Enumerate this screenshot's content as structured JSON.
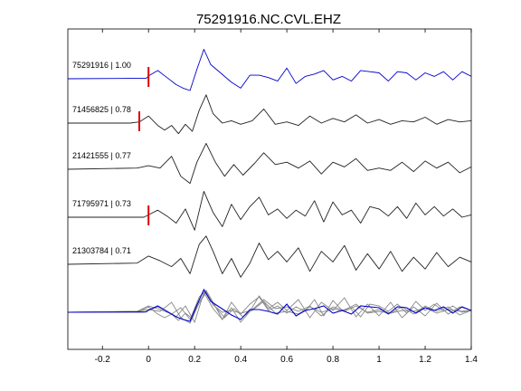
{
  "chart_data": {
    "type": "line",
    "title": "75291916.NC.CVL.EHZ",
    "xlabel": "",
    "ylabel": "",
    "xlim": [
      -0.35,
      1.4
    ],
    "xticks": [
      -0.2,
      0,
      0.2,
      0.4,
      0.6,
      0.8,
      1,
      1.2,
      1.4
    ],
    "xtick_labels": [
      "-0.2",
      "0",
      "0.2",
      "0.4",
      "0.6",
      "0.8",
      "1",
      "1.2",
      "1.4"
    ],
    "grid": false,
    "legend": "none",
    "colors": {
      "reference": "#0000cc",
      "trace": "#222222",
      "overlay": "#888888",
      "pick": "#dd0000"
    },
    "traces": [
      {
        "label": "75291916 | 1.00",
        "color": "blue",
        "pick": 0.0,
        "x": [
          -0.35,
          -0.01,
          0.0,
          0.04,
          0.08,
          0.12,
          0.15,
          0.18,
          0.21,
          0.24,
          0.27,
          0.3,
          0.33,
          0.36,
          0.4,
          0.44,
          0.48,
          0.52,
          0.56,
          0.6,
          0.64,
          0.68,
          0.72,
          0.76,
          0.8,
          0.84,
          0.88,
          0.92,
          0.96,
          1.0,
          1.04,
          1.08,
          1.12,
          1.16,
          1.2,
          1.24,
          1.28,
          1.32,
          1.36,
          1.4
        ],
        "y": [
          0,
          0.02,
          0.12,
          0.35,
          0.05,
          -0.25,
          -0.4,
          -0.5,
          0.4,
          1.25,
          0.6,
          0.35,
          0.1,
          -0.15,
          -0.4,
          0.15,
          0.15,
          0.05,
          -0.1,
          0.45,
          -0.2,
          0.1,
          0.2,
          0.35,
          -0.05,
          0.1,
          -0.1,
          0.35,
          0.3,
          0.25,
          -0.1,
          0.3,
          0.25,
          -0.05,
          0.25,
          0.1,
          0.3,
          -0.05,
          0.3,
          0.1
        ]
      },
      {
        "label": "71456825 | 0.78",
        "color": "black",
        "pick": -0.04,
        "x": [
          -0.35,
          -0.08,
          -0.04,
          0.0,
          0.04,
          0.07,
          0.1,
          0.13,
          0.16,
          0.19,
          0.22,
          0.25,
          0.28,
          0.32,
          0.36,
          0.4,
          0.45,
          0.5,
          0.55,
          0.6,
          0.65,
          0.7,
          0.75,
          0.8,
          0.85,
          0.9,
          0.95,
          1.0,
          1.05,
          1.1,
          1.15,
          1.2,
          1.25,
          1.3,
          1.35,
          1.4
        ],
        "y": [
          0,
          0.0,
          0.05,
          0.3,
          -0.1,
          -0.3,
          -0.1,
          -0.45,
          -0.05,
          -0.35,
          0.55,
          1.2,
          0.4,
          0.0,
          0.1,
          -0.05,
          0.1,
          0.6,
          -0.05,
          0.05,
          -0.1,
          0.3,
          0.0,
          0.2,
          0.05,
          0.35,
          0.0,
          0.15,
          -0.05,
          0.1,
          0.05,
          0.25,
          -0.05,
          0.15,
          0.05,
          0.1
        ]
      },
      {
        "label": "21421555 | 0.77",
        "color": "black",
        "pick": null,
        "x": [
          -0.35,
          -0.05,
          0.0,
          0.05,
          0.1,
          0.14,
          0.18,
          0.21,
          0.25,
          0.29,
          0.33,
          0.37,
          0.41,
          0.46,
          0.5,
          0.55,
          0.6,
          0.65,
          0.7,
          0.75,
          0.8,
          0.85,
          0.9,
          0.95,
          1.0,
          1.05,
          1.1,
          1.15,
          1.2,
          1.25,
          1.3,
          1.35,
          1.4
        ],
        "y": [
          0,
          0.05,
          0.15,
          0.05,
          0.55,
          -0.3,
          -0.6,
          0.3,
          1.1,
          0.3,
          -0.3,
          0.2,
          -0.25,
          0.25,
          0.7,
          0.2,
          0.3,
          0.05,
          0.35,
          -0.2,
          0.3,
          0.1,
          0.45,
          -0.05,
          0.05,
          -0.05,
          0.3,
          -0.1,
          0.35,
          0.05,
          0.3,
          -0.15,
          0.1
        ]
      },
      {
        "label": "71795971 | 0.73",
        "color": "black",
        "pick": 0.0,
        "x": [
          -0.35,
          -0.02,
          0.0,
          0.04,
          0.08,
          0.12,
          0.16,
          0.2,
          0.24,
          0.28,
          0.32,
          0.36,
          0.4,
          0.44,
          0.48,
          0.52,
          0.56,
          0.6,
          0.64,
          0.68,
          0.72,
          0.76,
          0.8,
          0.84,
          0.88,
          0.92,
          0.96,
          1.0,
          1.04,
          1.08,
          1.12,
          1.16,
          1.2,
          1.24,
          1.28,
          1.32,
          1.36,
          1.4
        ],
        "y": [
          0,
          0.0,
          0.1,
          0.3,
          0.05,
          -0.25,
          0.35,
          -0.55,
          1.1,
          0.2,
          -0.4,
          0.55,
          -0.1,
          0.45,
          0.85,
          0.1,
          0.35,
          -0.05,
          0.3,
          0.05,
          0.7,
          -0.2,
          0.65,
          0.1,
          0.3,
          -0.25,
          0.45,
          0.35,
          0.05,
          0.45,
          -0.05,
          0.6,
          0.1,
          0.45,
          0.05,
          0.35,
          0.0,
          0.1
        ]
      },
      {
        "label": "21303784 | 0.71",
        "color": "black",
        "pick": null,
        "x": [
          -0.35,
          -0.05,
          0.0,
          0.05,
          0.1,
          0.14,
          0.18,
          0.22,
          0.25,
          0.28,
          0.32,
          0.36,
          0.4,
          0.44,
          0.48,
          0.52,
          0.56,
          0.6,
          0.65,
          0.7,
          0.75,
          0.8,
          0.85,
          0.9,
          0.95,
          1.0,
          1.05,
          1.1,
          1.15,
          1.2,
          1.25,
          1.3,
          1.35,
          1.4
        ],
        "y": [
          0,
          0.05,
          0.35,
          0.15,
          -0.1,
          0.25,
          -0.4,
          0.85,
          1.2,
          0.55,
          -0.4,
          0.25,
          -0.55,
          0.05,
          0.9,
          0.2,
          0.55,
          0.1,
          0.7,
          -0.3,
          0.55,
          0.1,
          0.8,
          -0.25,
          0.45,
          -0.2,
          0.55,
          -0.3,
          0.3,
          -0.2,
          0.5,
          -0.1,
          0.3,
          0.1
        ]
      }
    ]
  }
}
